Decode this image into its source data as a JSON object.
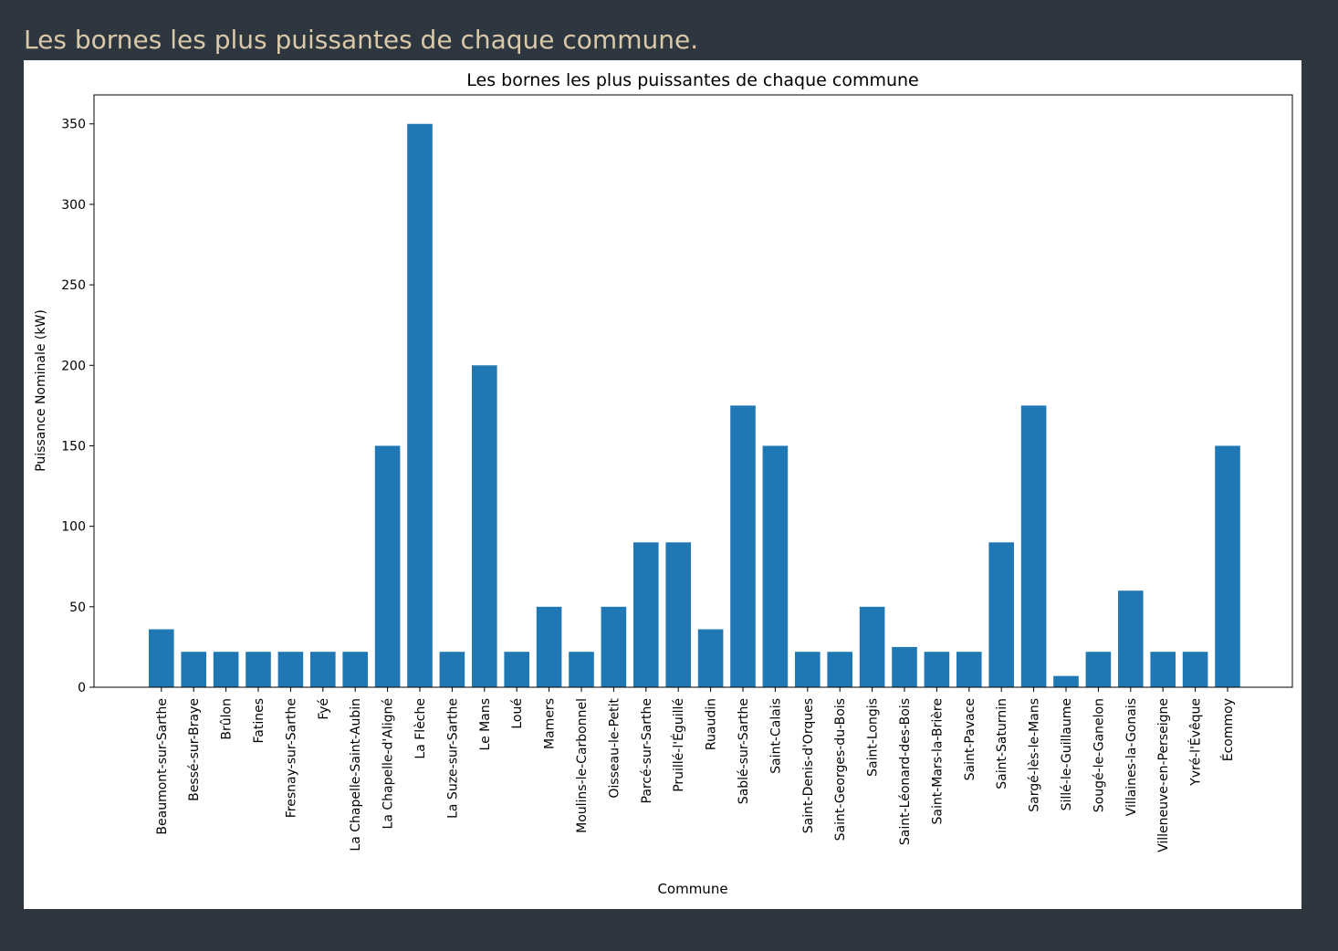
{
  "page": {
    "heading": "Les bornes les plus puissantes de chaque commune."
  },
  "chart_data": {
    "type": "bar",
    "title": "Les bornes les plus puissantes de chaque commune",
    "xlabel": "Commune",
    "ylabel": "Puissance Nominale (kW)",
    "ylim": [
      0,
      368
    ],
    "yticks": [
      0,
      50,
      100,
      150,
      200,
      250,
      300,
      350
    ],
    "bar_color": "#1f77b4",
    "grid": false,
    "categories": [
      "Beaumont-sur-Sarthe",
      "Bessé-sur-Braye",
      "Brûlon",
      "Fatines",
      "Fresnay-sur-Sarthe",
      "Fyé",
      "La Chapelle-Saint-Aubin",
      "La Chapelle-d'Aligné",
      "La Flèche",
      "La Suze-sur-Sarthe",
      "Le Mans",
      "Loué",
      "Mamers",
      "Moulins-le-Carbonnel",
      "Oisseau-le-Petit",
      "Parcé-sur-Sarthe",
      "Pruillé-l'Éguillé",
      "Ruaudin",
      "Sablé-sur-Sarthe",
      "Saint-Calais",
      "Saint-Denis-d'Orques",
      "Saint-Georges-du-Bois",
      "Saint-Longis",
      "Saint-Léonard-des-Bois",
      "Saint-Mars-la-Brière",
      "Saint-Pavace",
      "Saint-Saturnin",
      "Sargé-lès-le-Mans",
      "Sillé-le-Guillaume",
      "Sougé-le-Ganelon",
      "Villaines-la-Gonais",
      "Villeneuve-en-Perseigne",
      "Yvré-l'Évêque",
      "Écommoy"
    ],
    "values": [
      36,
      22,
      22,
      22,
      22,
      22,
      22,
      150,
      350,
      22,
      200,
      22,
      50,
      22,
      50,
      90,
      90,
      36,
      175,
      150,
      22,
      22,
      50,
      25,
      22,
      22,
      90,
      175,
      7,
      22,
      60,
      22,
      22,
      150
    ]
  }
}
